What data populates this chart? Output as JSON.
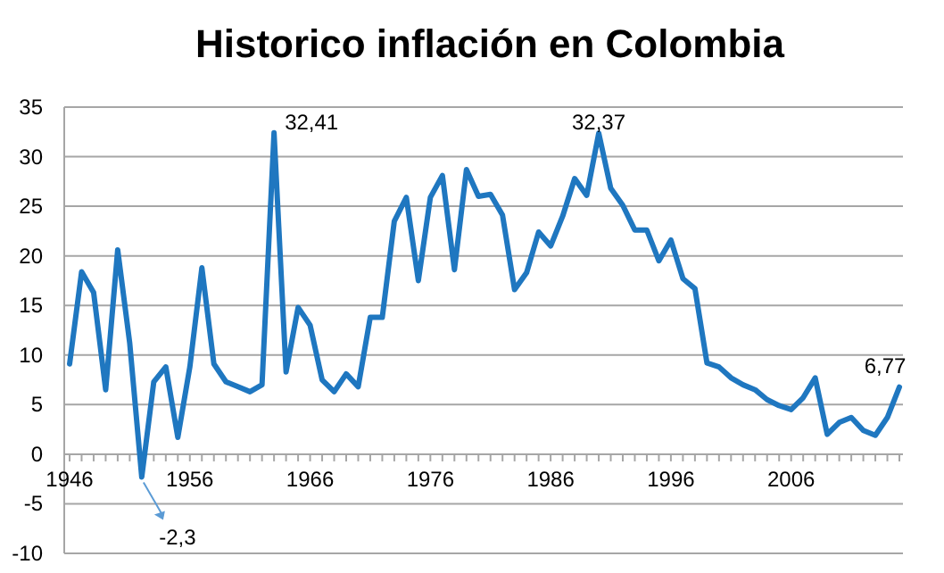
{
  "chart_data": {
    "type": "line",
    "title": "Historico inflación en Colombia",
    "categories": [
      "1946",
      null,
      null,
      null,
      null,
      null,
      null,
      null,
      null,
      null,
      "1956",
      null,
      null,
      null,
      null,
      null,
      null,
      null,
      null,
      null,
      "1966",
      null,
      null,
      null,
      null,
      null,
      null,
      null,
      null,
      null,
      "1976",
      null,
      null,
      null,
      null,
      null,
      null,
      null,
      null,
      null,
      "1986",
      null,
      null,
      null,
      null,
      null,
      null,
      null,
      null,
      null,
      "1996",
      null,
      null,
      null,
      null,
      null,
      null,
      null,
      null,
      null,
      "2006",
      null,
      null,
      null,
      null,
      null,
      null,
      null,
      null,
      null
    ],
    "series": [
      {
        "color": "#1f77c0",
        "values": [
          9.1,
          18.4,
          16.3,
          6.5,
          20.6,
          11.2,
          -2.3,
          7.3,
          8.8,
          1.7,
          8.8,
          18.8,
          9.1,
          7.3,
          6.8,
          6.3,
          7.0,
          32.41,
          8.3,
          14.8,
          13.0,
          7.5,
          6.3,
          8.1,
          6.8,
          13.8,
          13.8,
          23.5,
          25.9,
          17.5,
          25.9,
          28.1,
          18.6,
          28.7,
          26.0,
          26.2,
          24.1,
          16.6,
          18.3,
          22.4,
          21.0,
          24.0,
          27.8,
          26.1,
          32.37,
          26.8,
          25.1,
          22.6,
          22.6,
          19.5,
          21.6,
          17.7,
          16.7,
          9.2,
          8.8,
          7.7,
          7.0,
          6.5,
          5.5,
          4.9,
          4.5,
          5.7,
          7.7,
          2.0,
          3.2,
          3.7,
          2.4,
          1.9,
          3.7,
          6.77
        ]
      }
    ],
    "value_labels": [
      null,
      null,
      null,
      null,
      null,
      null,
      "-2,3",
      null,
      null,
      null,
      null,
      null,
      null,
      null,
      null,
      null,
      null,
      "32,41",
      null,
      null,
      null,
      null,
      null,
      null,
      null,
      null,
      null,
      null,
      null,
      null,
      null,
      null,
      null,
      null,
      null,
      null,
      null,
      null,
      null,
      null,
      null,
      null,
      null,
      null,
      "32,37",
      null,
      null,
      null,
      null,
      null,
      null,
      null,
      null,
      null,
      null,
      null,
      null,
      null,
      null,
      null,
      null,
      null,
      null,
      null,
      null,
      null,
      null,
      null,
      null,
      "6,77"
    ],
    "ylim": [
      -10,
      35
    ],
    "yticks": [
      -10,
      -5,
      0,
      5,
      10,
      15,
      20,
      25,
      30,
      35
    ],
    "grid": "y"
  }
}
